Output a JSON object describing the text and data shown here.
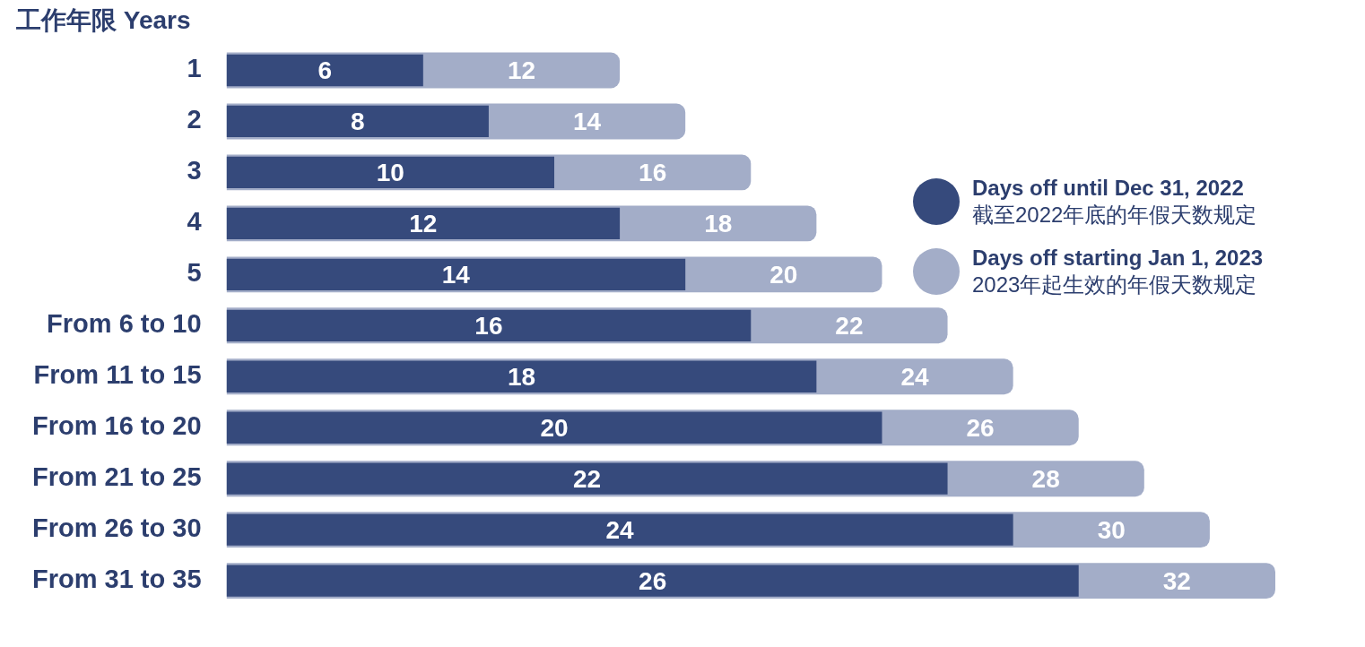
{
  "chart_data": {
    "type": "bar",
    "orientation": "horizontal",
    "title": "工作年限 Years",
    "categories": [
      "1",
      "2",
      "3",
      "4",
      "5",
      "From 6 to 10",
      "From 11 to 15",
      "From 16 to 20",
      "From 21 to 25",
      "From 26 to 30",
      "From 31 to 35"
    ],
    "series": [
      {
        "name": "Days off until Dec 31, 2022\n截至2022年底的年假天数规定",
        "color": "#364a7c",
        "values": [
          6,
          8,
          10,
          12,
          14,
          16,
          18,
          20,
          22,
          24,
          26
        ]
      },
      {
        "name": "Days off starting Jan 1, 2023\n2023年起生效的年假天数规定",
        "color": "#a3adc8",
        "values": [
          12,
          14,
          16,
          18,
          20,
          22,
          24,
          26,
          28,
          30,
          32
        ]
      }
    ],
    "data_labels": true,
    "legend": "right",
    "tick_labels": "y"
  }
}
